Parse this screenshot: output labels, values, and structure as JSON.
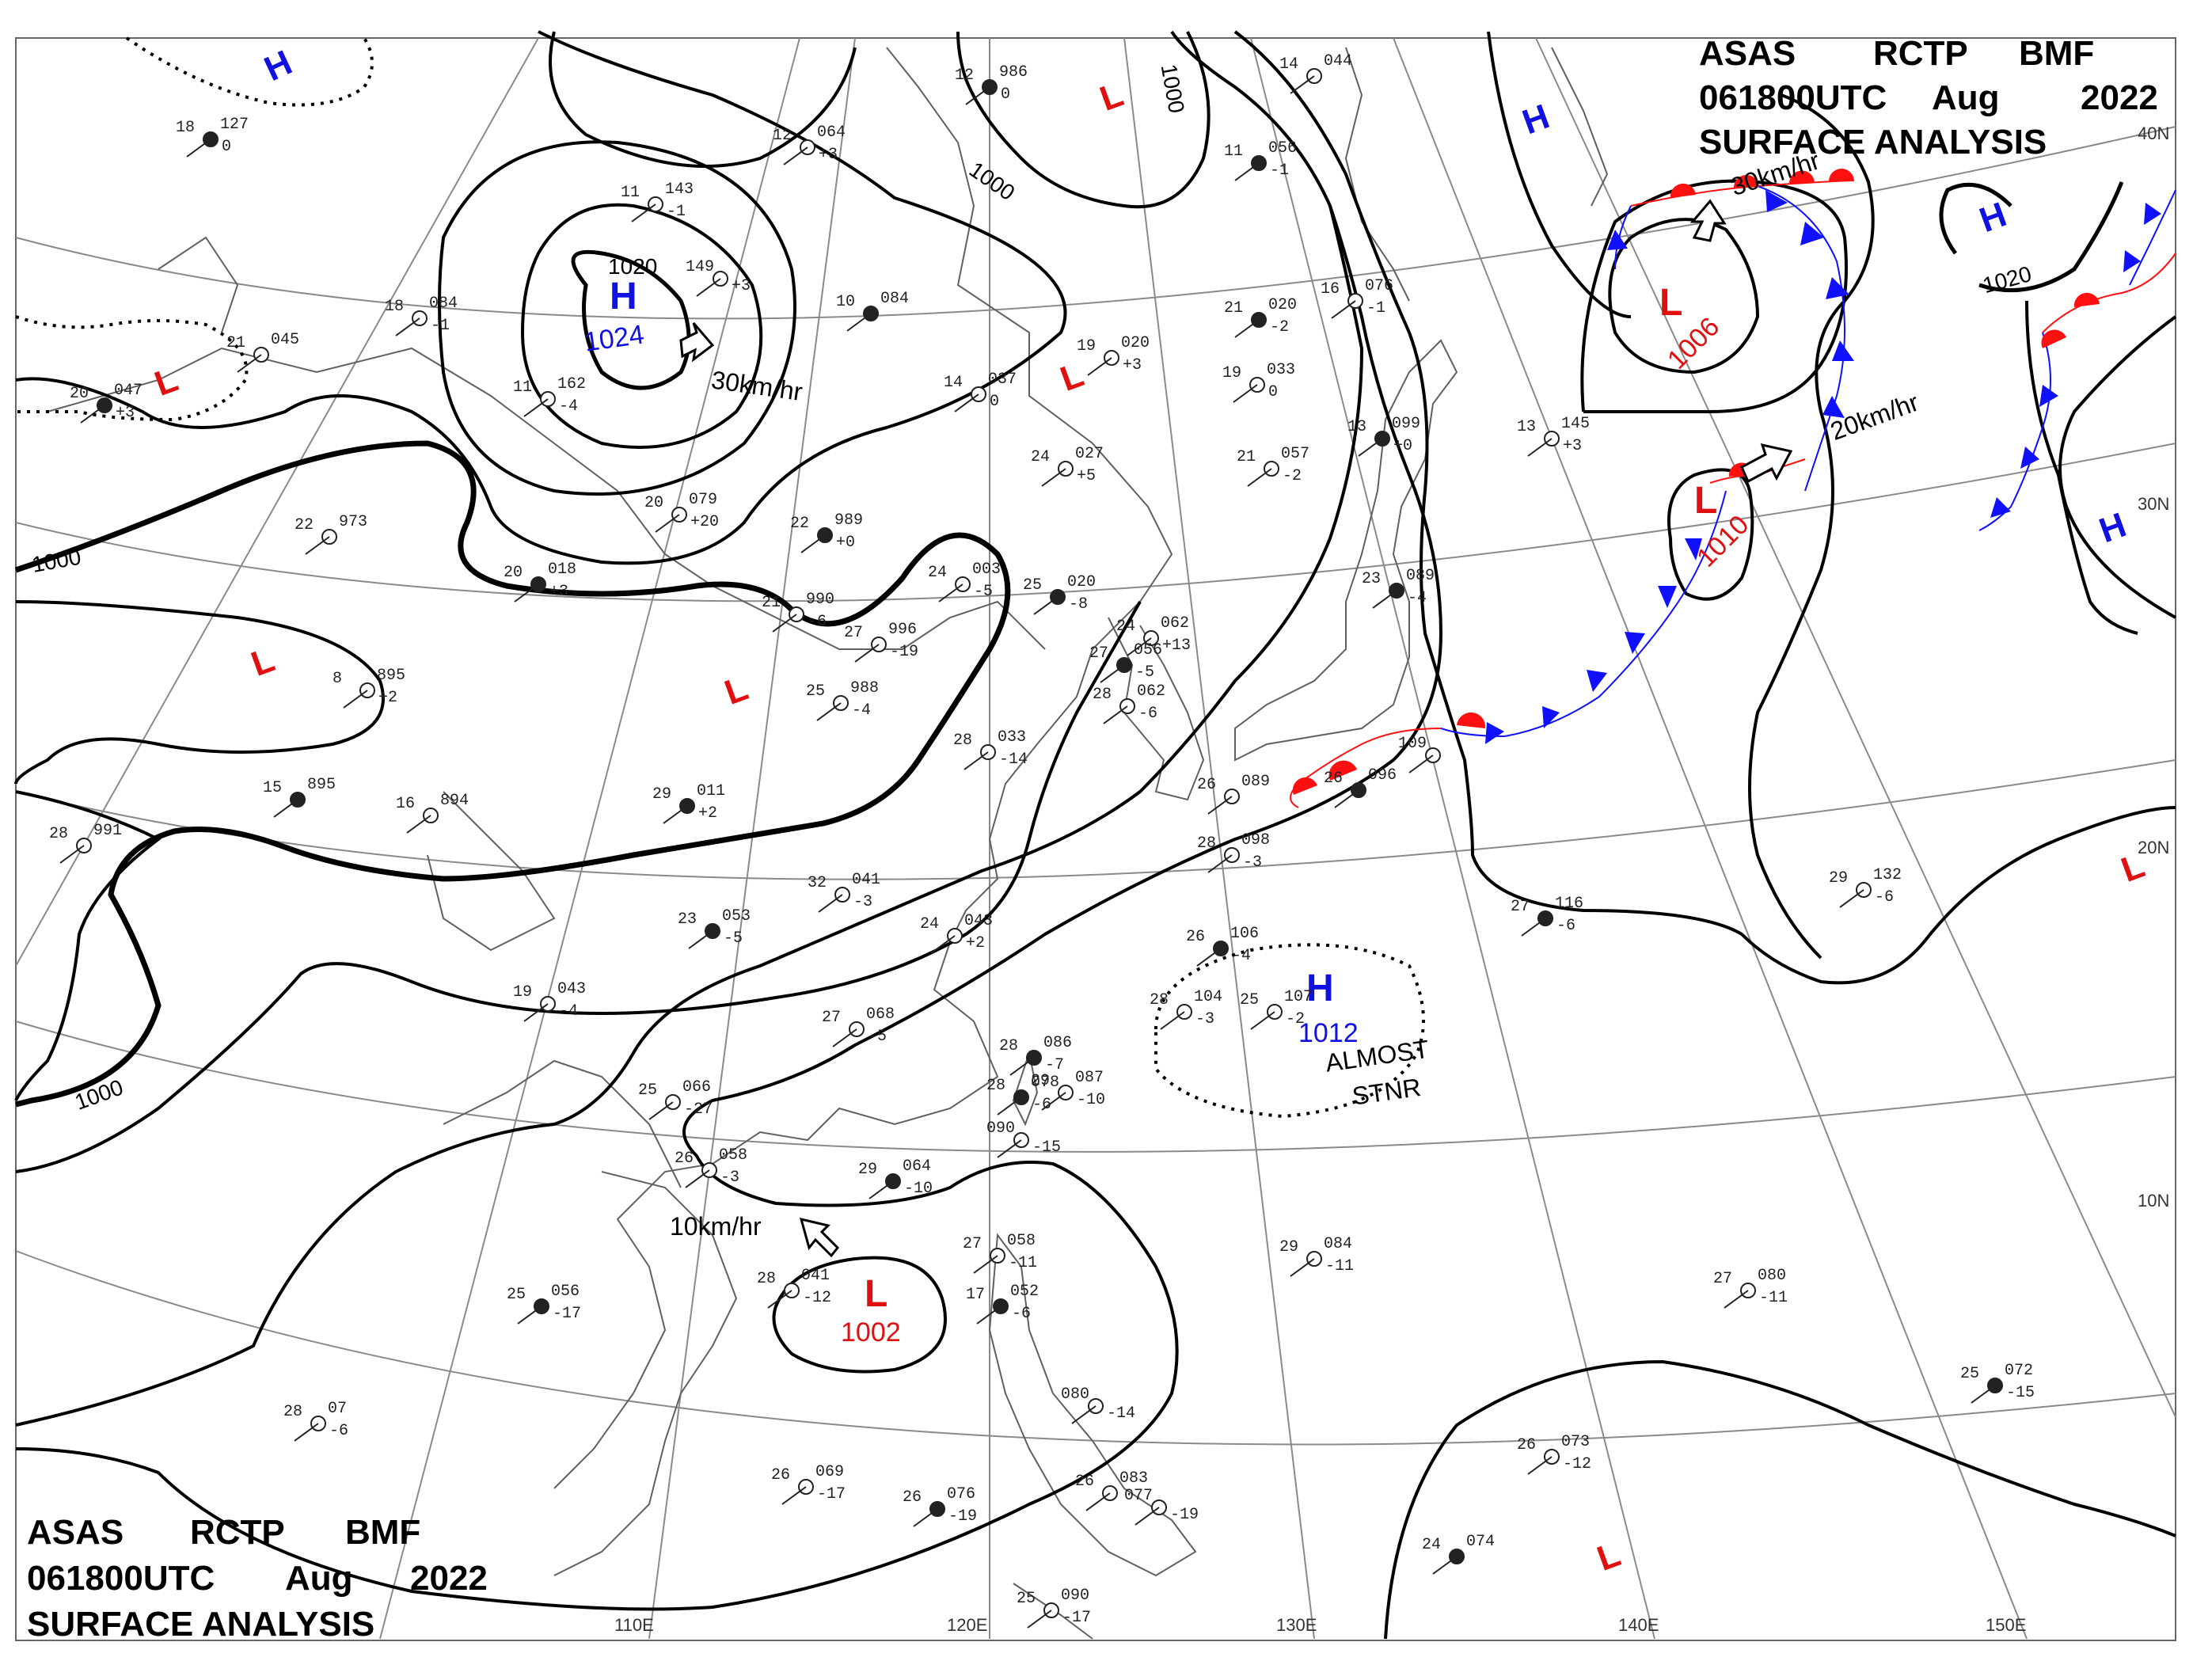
{
  "header_top": {
    "line1": [
      "ASAS",
      "RCTP",
      "BMF"
    ],
    "line2": [
      "061800UTC",
      "Aug",
      "2022"
    ],
    "line3": "SURFACE ANALYSIS"
  },
  "header_bottom": {
    "line1": [
      "ASAS",
      "RCTP",
      "BMF"
    ],
    "line2": [
      "061800UTC",
      "Aug",
      "2022"
    ],
    "line3": "SURFACE ANALYSIS"
  },
  "longitude_labels": [
    "110E",
    "120E",
    "130E",
    "140E",
    "150E"
  ],
  "latitude_labels": [
    "40N",
    "30N",
    "20N",
    "10N"
  ],
  "isobar_labels": [
    "1020",
    "1000",
    "1000",
    "1000",
    "1000",
    "1020"
  ],
  "pressure_systems": [
    {
      "type": "H",
      "value": "1024"
    },
    {
      "type": "L",
      "value": "1006"
    },
    {
      "type": "L",
      "value": "1010"
    },
    {
      "type": "H",
      "value": "1012"
    },
    {
      "type": "L",
      "value": "1002"
    },
    {
      "type": "H",
      "value": ""
    },
    {
      "type": "H",
      "value": ""
    },
    {
      "type": "H",
      "value": ""
    },
    {
      "type": "H",
      "value": ""
    },
    {
      "type": "L",
      "value": ""
    },
    {
      "type": "L",
      "value": ""
    },
    {
      "type": "L",
      "value": ""
    },
    {
      "type": "L",
      "value": ""
    },
    {
      "type": "L",
      "value": ""
    },
    {
      "type": "L",
      "value": ""
    },
    {
      "type": "L",
      "value": ""
    }
  ],
  "movement_labels": [
    "30km/hr",
    "30km/hr",
    "20km/hr",
    "10km/hr"
  ],
  "annotations": {
    "almost": "ALMOST",
    "stnr": "STNR"
  },
  "stations": [
    {
      "t": "12",
      "p": "986",
      "d": "0"
    },
    {
      "t": "12",
      "p": "064",
      "d": "+3"
    },
    {
      "t": "11",
      "p": "143",
      "d": "-1"
    },
    {
      "t": "18",
      "p": "127",
      "d": "0"
    },
    {
      "t": "18",
      "p": "084",
      "d": "-1"
    },
    {
      "t": "21",
      "p": "045",
      "d": ""
    },
    {
      "t": "20",
      "p": "047",
      "d": "+3"
    },
    {
      "t": "11",
      "p": "162",
      "d": "-4"
    },
    {
      "t": "149",
      "p": "",
      "d": "+3"
    },
    {
      "t": "10",
      "p": "084",
      "d": ""
    },
    {
      "t": "14",
      "p": "037",
      "d": "0"
    },
    {
      "t": "19",
      "p": "020",
      "d": "+3"
    },
    {
      "t": "21",
      "p": "020",
      "d": "-2"
    },
    {
      "t": "19",
      "p": "033",
      "d": "0"
    },
    {
      "t": "16",
      "p": "076",
      "d": "-1"
    },
    {
      "t": "13",
      "p": "099",
      "d": "+0"
    },
    {
      "t": "13",
      "p": "145",
      "d": "+3"
    },
    {
      "t": "14",
      "p": "044",
      "d": ""
    },
    {
      "t": "11",
      "p": "056",
      "d": "-1"
    },
    {
      "t": "20",
      "p": "079",
      "d": "+20"
    },
    {
      "t": "22",
      "p": "973",
      "d": ""
    },
    {
      "t": "22",
      "p": "989",
      "d": "+0"
    },
    {
      "t": "24",
      "p": "027",
      "d": "+5"
    },
    {
      "t": "21",
      "p": "057",
      "d": "-2"
    },
    {
      "t": "20",
      "p": "018",
      "d": "+3"
    },
    {
      "t": "21",
      "p": "990",
      "d": "-6"
    },
    {
      "t": "24",
      "p": "003",
      "d": "-5"
    },
    {
      "t": "25",
      "p": "020",
      "d": "-8"
    },
    {
      "t": "27",
      "p": "996",
      "d": "-19"
    },
    {
      "t": "24",
      "p": "062",
      "d": "+13"
    },
    {
      "t": "23",
      "p": "089",
      "d": "-4"
    },
    {
      "t": "8",
      "p": "895",
      "d": "+2"
    },
    {
      "t": "25",
      "p": "988",
      "d": "-4"
    },
    {
      "t": "27",
      "p": "056",
      "d": "-5"
    },
    {
      "t": "28",
      "p": "062",
      "d": "-6"
    },
    {
      "t": "28",
      "p": "033",
      "d": "-14"
    },
    {
      "t": "15",
      "p": "895",
      "d": ""
    },
    {
      "t": "16",
      "p": "894",
      "d": ""
    },
    {
      "t": "28",
      "p": "991",
      "d": ""
    },
    {
      "t": "29",
      "p": "011",
      "d": "+2"
    },
    {
      "t": "26",
      "p": "089",
      "d": ""
    },
    {
      "t": "28",
      "p": "098",
      "d": "-3"
    },
    {
      "t": "26",
      "p": "096",
      "d": ""
    },
    {
      "t": "109",
      "p": "",
      "d": ""
    },
    {
      "t": "32",
      "p": "041",
      "d": "-3"
    },
    {
      "t": "23",
      "p": "053",
      "d": "-5"
    },
    {
      "t": "24",
      "p": "043",
      "d": "+2"
    },
    {
      "t": "19",
      "p": "043",
      "d": "-4"
    },
    {
      "t": "26",
      "p": "106",
      "d": "-4"
    },
    {
      "t": "28",
      "p": "104",
      "d": "-3"
    },
    {
      "t": "25",
      "p": "107",
      "d": "-2"
    },
    {
      "t": "27",
      "p": "116",
      "d": "-6"
    },
    {
      "t": "29",
      "p": "132",
      "d": "-6"
    },
    {
      "t": "27",
      "p": "068",
      "d": "-5"
    },
    {
      "t": "28",
      "p": "086",
      "d": "-7"
    },
    {
      "t": "29",
      "p": "087",
      "d": "-10"
    },
    {
      "t": "25",
      "p": "066",
      "d": "-27"
    },
    {
      "t": "28",
      "p": "078",
      "d": "-6"
    },
    {
      "t": "090",
      "p": "",
      "d": "-15"
    },
    {
      "t": "26",
      "p": "058",
      "d": "-3"
    },
    {
      "t": "29",
      "p": "064",
      "d": "-10"
    },
    {
      "t": "27",
      "p": "058",
      "d": "-11"
    },
    {
      "t": "28",
      "p": "041",
      "d": "-12"
    },
    {
      "t": "17",
      "p": "052",
      "d": "-6"
    },
    {
      "t": "29",
      "p": "084",
      "d": "-11"
    },
    {
      "t": "27",
      "p": "080",
      "d": "-11"
    },
    {
      "t": "25",
      "p": "056",
      "d": "-17"
    },
    {
      "t": "28",
      "p": "07",
      "d": "-6"
    },
    {
      "t": "080",
      "p": "",
      "d": "-14"
    },
    {
      "t": "25",
      "p": "072",
      "d": "-15"
    },
    {
      "t": "26",
      "p": "073",
      "d": "-12"
    },
    {
      "t": "26",
      "p": "069",
      "d": "-17"
    },
    {
      "t": "26",
      "p": "076",
      "d": "-19"
    },
    {
      "t": "26",
      "p": "083",
      "d": ""
    },
    {
      "t": "077",
      "p": "",
      "d": "-19"
    },
    {
      "t": "24",
      "p": "074",
      "d": ""
    },
    {
      "t": "25",
      "p": "090",
      "d": "-17"
    }
  ],
  "colors": {
    "isobar": "#000000",
    "grid": "#8a8a8a",
    "coast": "#606060",
    "high": "#1010e0",
    "low": "#e01010",
    "warm_front": "#ff1010",
    "cold_front": "#1010ff"
  }
}
